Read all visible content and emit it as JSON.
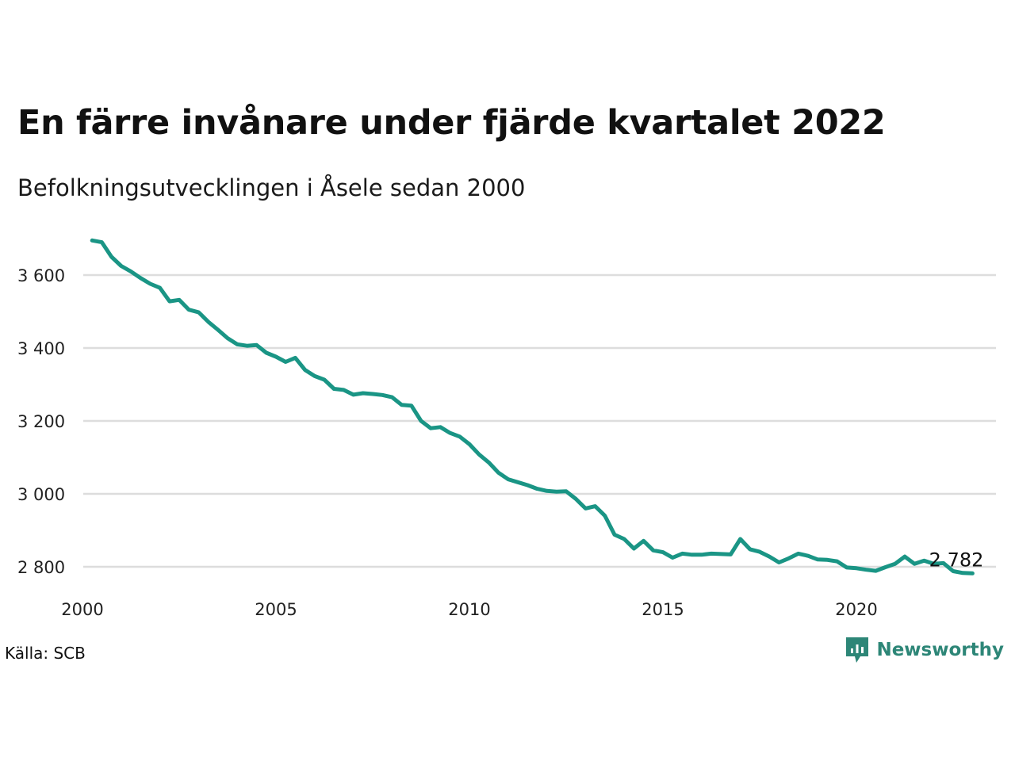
{
  "title": "En färre invånare under fjärde kvartalet 2022",
  "subtitle": "Befolkningsutvecklingen i Åsele sedan 2000",
  "source": "Källa: SCB",
  "brand": {
    "name": "Newsworthy",
    "icon": "newsworthy-logo-icon",
    "color": "#2d8677"
  },
  "colors": {
    "line": "#1a9585",
    "grid": "#dddddd"
  },
  "chart_data": {
    "type": "line",
    "title": "En färre invånare under fjärde kvartalet 2022",
    "subtitle": "Befolkningsutvecklingen i Åsele sedan 2000",
    "xlabel": "",
    "ylabel": "",
    "xlim": [
      2000,
      2023.5
    ],
    "ylim": [
      2755,
      3740
    ],
    "x_ticks": [
      2000,
      2005,
      2010,
      2015,
      2020
    ],
    "x_tick_labels": [
      "2000",
      "2005",
      "2010",
      "2015",
      "2020"
    ],
    "y_ticks": [
      2800,
      3000,
      3200,
      3400,
      3600
    ],
    "y_tick_labels": [
      "2 800",
      "3 000",
      "3 200",
      "3 400",
      "3 600"
    ],
    "grid": "horizontal",
    "end_label": "2 782",
    "series": [
      {
        "x": [
          2000.25,
          2000.5,
          2000.75,
          2001,
          2001.25,
          2001.5,
          2001.75,
          2002,
          2002.25,
          2002.5,
          2002.75,
          2003,
          2003.25,
          2003.5,
          2003.75,
          2004,
          2004.25,
          2004.5,
          2004.75,
          2005,
          2005.25,
          2005.5,
          2005.75,
          2006,
          2006.25,
          2006.5,
          2006.75,
          2007,
          2007.25,
          2007.5,
          2007.75,
          2008,
          2008.25,
          2008.5,
          2008.75,
          2009,
          2009.25,
          2009.5,
          2009.75,
          2010,
          2010.25,
          2010.5,
          2010.75,
          2011,
          2011.25,
          2011.5,
          2011.75,
          2012,
          2012.25,
          2012.5,
          2012.75,
          2013,
          2013.25,
          2013.5,
          2013.75,
          2014,
          2014.25,
          2014.5,
          2014.75,
          2015,
          2015.25,
          2015.5,
          2015.75,
          2016,
          2016.25,
          2016.5,
          2016.75,
          2017,
          2017.25,
          2017.5,
          2017.75,
          2018,
          2018.25,
          2018.5,
          2018.75,
          2019,
          2019.25,
          2019.5,
          2019.75,
          2020,
          2020.25,
          2020.5,
          2020.75,
          2021,
          2021.25,
          2021.5,
          2021.75,
          2022,
          2022.25,
          2022.5,
          2022.75,
          2023
        ],
        "y": [
          3695,
          3690,
          3650,
          3625,
          3610,
          3592,
          3576,
          3565,
          3528,
          3532,
          3505,
          3498,
          3472,
          3450,
          3427,
          3410,
          3406,
          3408,
          3387,
          3376,
          3362,
          3373,
          3340,
          3323,
          3313,
          3288,
          3285,
          3272,
          3276,
          3274,
          3271,
          3265,
          3244,
          3242,
          3200,
          3180,
          3183,
          3167,
          3157,
          3136,
          3108,
          3086,
          3058,
          3040,
          3032,
          3024,
          3014,
          3008,
          3006,
          3007,
          2986,
          2960,
          2966,
          2940,
          2888,
          2876,
          2850,
          2871,
          2845,
          2840,
          2825,
          2836,
          2833,
          2833,
          2836,
          2835,
          2834,
          2876,
          2848,
          2841,
          2828,
          2812,
          2823,
          2836,
          2830,
          2820,
          2819,
          2815,
          2798,
          2796,
          2792,
          2789,
          2799,
          2808,
          2828,
          2808,
          2817,
          2808,
          2810,
          2788,
          2783,
          2782
        ]
      }
    ]
  }
}
